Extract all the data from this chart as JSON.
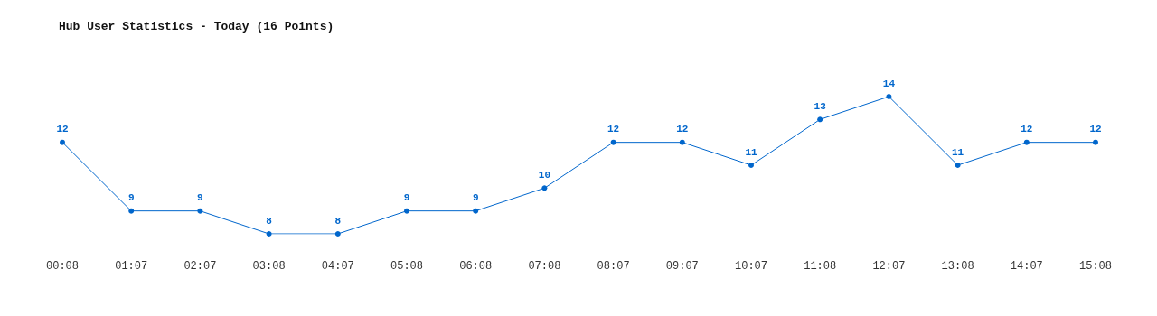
{
  "chart_data": {
    "type": "line",
    "title": "Hub User Statistics - Today (16 Points)",
    "categories": [
      "00:08",
      "01:07",
      "02:07",
      "03:08",
      "04:07",
      "05:08",
      "06:08",
      "07:08",
      "08:07",
      "09:07",
      "10:07",
      "11:08",
      "12:07",
      "13:08",
      "14:07",
      "15:08"
    ],
    "series": [
      {
        "color": "#0066cc",
        "values": [
          12,
          9,
          9,
          8,
          8,
          9,
          9,
          10,
          12,
          12,
          11,
          13,
          14,
          11,
          12,
          12
        ]
      }
    ],
    "data_labels": true,
    "marker": "circle",
    "line_style": "solid",
    "grid": false
  }
}
